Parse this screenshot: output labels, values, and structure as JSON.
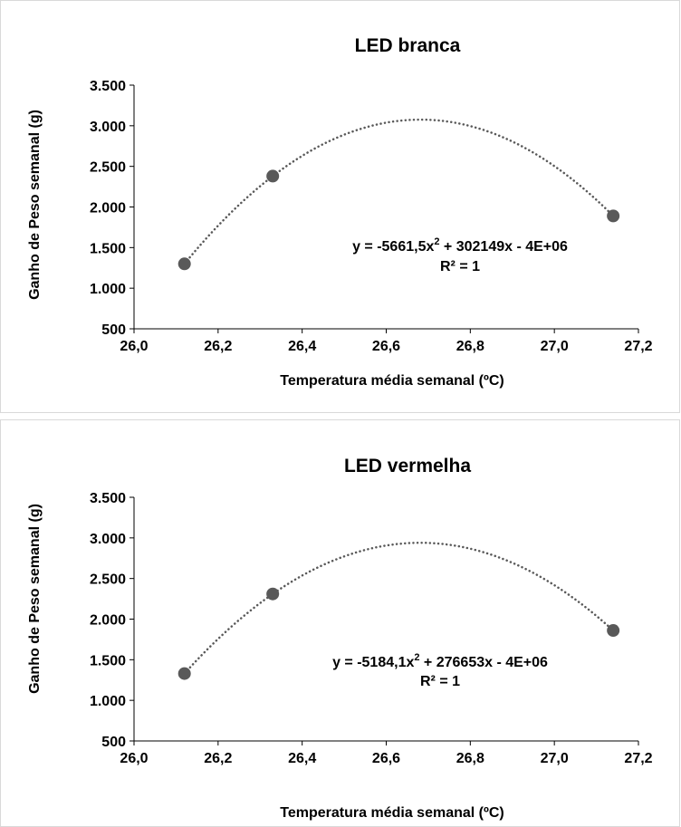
{
  "colors": {
    "frame": "#d9d9d9",
    "axis": "#000000",
    "marker": "#595959",
    "trendline": "#595959"
  },
  "chart_data": [
    {
      "type": "scatter",
      "title": "LED branca",
      "xlabel": "Temperatura média semanal (ºC)",
      "ylabel": "Ganho de Peso semanal (g)",
      "xlim": [
        26.0,
        27.2
      ],
      "ylim": [
        500,
        3500
      ],
      "x_ticks": [
        "26,0",
        "26,2",
        "26,4",
        "26,6",
        "26,8",
        "27,0",
        "27,2"
      ],
      "y_ticks": [
        "500",
        "1.000",
        "1.500",
        "2.000",
        "2.500",
        "3.000",
        "3.500"
      ],
      "grid": false,
      "points": [
        {
          "x": 26.12,
          "y": 1300
        },
        {
          "x": 26.33,
          "y": 2380
        },
        {
          "x": 27.14,
          "y": 1890
        }
      ],
      "trendline": {
        "type": "polynomial-2",
        "coefficients": {
          "a": -5661.5,
          "b": 302149,
          "c": -4000000
        },
        "equation_parts": [
          "y = -5661,5x",
          "2",
          " + 302149x - 4E+06"
        ],
        "r2": "R² = 1"
      }
    },
    {
      "type": "scatter",
      "title": "LED vermelha",
      "xlabel": "Temperatura média semanal (ºC)",
      "ylabel": "Ganho de Peso semanal (g)",
      "xlim": [
        26.0,
        27.2
      ],
      "ylim": [
        500,
        3500
      ],
      "x_ticks": [
        "26,0",
        "26,2",
        "26,4",
        "26,6",
        "26,8",
        "27,0",
        "27,2"
      ],
      "y_ticks": [
        "500",
        "1.000",
        "1.500",
        "2.000",
        "2.500",
        "3.000",
        "3.500"
      ],
      "grid": false,
      "points": [
        {
          "x": 26.12,
          "y": 1330
        },
        {
          "x": 26.33,
          "y": 2310
        },
        {
          "x": 27.14,
          "y": 1860
        }
      ],
      "trendline": {
        "type": "polynomial-2",
        "coefficients": {
          "a": -5184.1,
          "b": 276653,
          "c": -4000000
        },
        "equation_parts": [
          "y = -5184,1x",
          "2",
          " + 276653x - 4E+06"
        ],
        "r2": "R² = 1"
      }
    }
  ]
}
